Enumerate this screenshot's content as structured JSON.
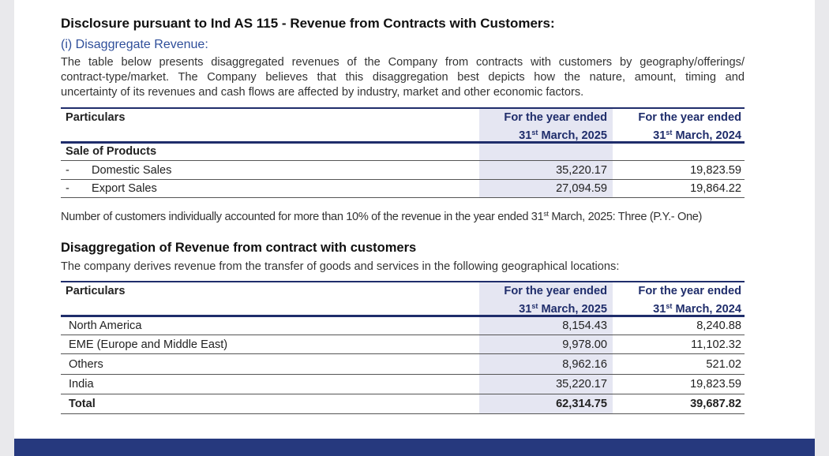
{
  "header": {
    "title": "Disclosure pursuant to Ind AS 115 - Revenue from Contracts with Customers:",
    "subtitle": "(i) Disaggregate Revenue:",
    "intro": [
      "The table below presents disaggregated revenues of the Company from contracts with customers by geography/offerings/",
      "contract-type/market. The Company believes that this disaggregation best depicts how the nature, amount, timing and",
      "uncertainty of its revenues and cash flows are affected by industry, market and other economic factors."
    ]
  },
  "table1": {
    "columns": [
      "Particulars",
      {
        "line1": "For the year ended",
        "day": "31",
        "suffix": "st",
        "rest": "March, 2025"
      },
      {
        "line1": "For the year ended",
        "day": "31",
        "suffix": "st",
        "rest": "March, 2024"
      }
    ],
    "group": "Sale of Products",
    "rows": [
      {
        "marker": "-",
        "label": "Domestic Sales",
        "values": [
          "35,220.17",
          "19,823.59"
        ]
      },
      {
        "marker": "-",
        "label": "Export Sales",
        "values": [
          "27,094.59",
          "19,864.22"
        ]
      }
    ]
  },
  "note": {
    "before": "Number of customers individually accounted for more than 10% of the revenue in the year ended 31",
    "suffix": "st",
    "after": "March, 2025: Three (P.Y.- One)"
  },
  "section": {
    "title": "Disaggregation of Revenue from contract with customers",
    "text": "The company derives revenue from the transfer of goods and services in the following geographical locations:"
  },
  "table2": {
    "columns": [
      "Particulars",
      {
        "line1": "For the year ended",
        "day": "31",
        "suffix": "st",
        "rest": "March, 2025"
      },
      {
        "line1": "For the year ended",
        "day": "31",
        "suffix": "st",
        "rest": "March, 2024"
      }
    ],
    "rows": [
      {
        "label": "North America",
        "values": [
          "8,154.43",
          "8,240.88"
        ]
      },
      {
        "label": "EME (Europe and Middle East)",
        "values": [
          "9,978.00",
          "11,102.32"
        ]
      },
      {
        "label": "Others",
        "values": [
          "8,962.16",
          "521.02"
        ]
      },
      {
        "label": "India",
        "values": [
          "35,220.17",
          "19,823.59"
        ]
      }
    ],
    "total": {
      "label": "Total",
      "values": [
        "62,314.75",
        "39,687.82"
      ]
    }
  }
}
